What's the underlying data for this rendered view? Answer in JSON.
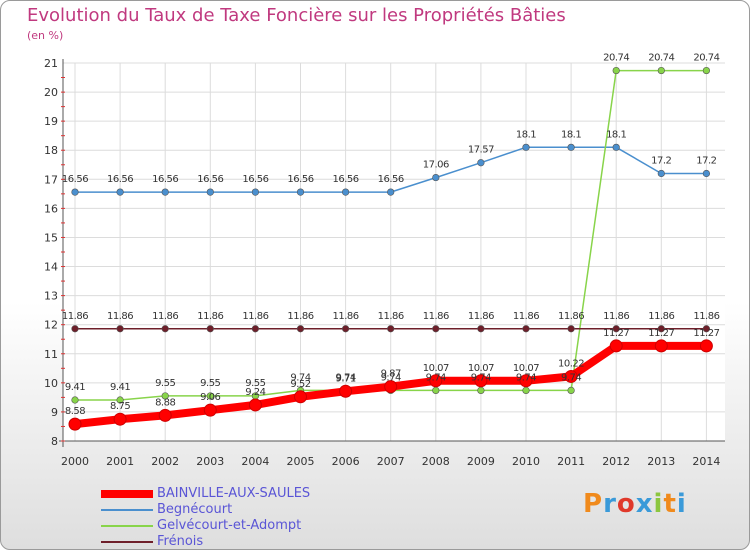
{
  "title": "Evolution du Taux de Taxe Foncière sur les Propriétés Bâties",
  "subtitle": "(en %)",
  "logo": [
    "P",
    "r",
    "o",
    "x",
    "i",
    "t",
    "i"
  ],
  "logo_colors": [
    "#f08a1c",
    "#3a9ad9",
    "#e0392b",
    "#3a9ad9",
    "#8cc63f",
    "#f08a1c",
    "#3a9ad9"
  ],
  "chart_data": {
    "type": "line",
    "x": [
      "2000",
      "2001",
      "2002",
      "2003",
      "2004",
      "2005",
      "2006",
      "2007",
      "2008",
      "2009",
      "2010",
      "2011",
      "2012",
      "2013",
      "2014"
    ],
    "ylim": [
      8,
      21
    ],
    "yticks": [
      "8",
      "9",
      "10",
      "11",
      "12",
      "13",
      "14",
      "15",
      "16",
      "17",
      "18",
      "19",
      "20",
      "21"
    ],
    "grid": true,
    "legend_position": "bottom-left",
    "series": [
      {
        "name": "BAINVILLE-AUX-SAULES",
        "color": "#ff0000",
        "values": [
          8.58,
          8.75,
          8.88,
          9.06,
          9.24,
          9.52,
          9.71,
          9.87,
          10.07,
          10.07,
          10.07,
          10.22,
          11.27,
          11.27,
          11.27
        ],
        "labels": [
          "8.58",
          "8.75",
          "8.88",
          "9.06",
          "9.24",
          "9.52",
          "9.71",
          "9.87",
          "10.07",
          "10.07",
          "10.07",
          "10.22",
          "11.27",
          "11.27",
          "11.27"
        ]
      },
      {
        "name": "Begnécourt",
        "color": "#4a8fce",
        "values": [
          16.56,
          16.56,
          16.56,
          16.56,
          16.56,
          16.56,
          16.56,
          16.56,
          17.06,
          17.57,
          18.1,
          18.1,
          18.1,
          17.2,
          17.2
        ],
        "labels": [
          "16.56",
          "16.56",
          "16.56",
          "16.56",
          "16.56",
          "16.56",
          "16.56",
          "16.56",
          "17.06",
          "17.57",
          "18.1",
          "18.1",
          "18.1",
          "17.2",
          "17.2"
        ]
      },
      {
        "name": "Gelvécourt-et-Adompt",
        "color": "#88d44a",
        "values": [
          9.41,
          9.41,
          9.55,
          9.55,
          9.55,
          9.74,
          9.74,
          9.74,
          9.74,
          9.74,
          9.74,
          9.74,
          20.74,
          20.74,
          20.74
        ],
        "labels": [
          "9.41",
          "9.41",
          "9.55",
          "9.55",
          "9.55",
          "9.74",
          "9.74",
          "9.74",
          "9.74",
          "9.74",
          "9.74",
          "9.74",
          "20.74",
          "20.74",
          "20.74"
        ]
      },
      {
        "name": "Frénois",
        "color": "#6e1f2a",
        "values": [
          11.86,
          11.86,
          11.86,
          11.86,
          11.86,
          11.86,
          11.86,
          11.86,
          11.86,
          11.86,
          11.86,
          11.86,
          11.86,
          11.86,
          11.86
        ],
        "labels": [
          "11.86",
          "11.86",
          "11.86",
          "11.86",
          "11.86",
          "11.86",
          "11.86",
          "11.86",
          "11.86",
          "11.86",
          "11.86",
          "11.86",
          "11.86",
          "11.86",
          "11.86"
        ]
      }
    ]
  }
}
